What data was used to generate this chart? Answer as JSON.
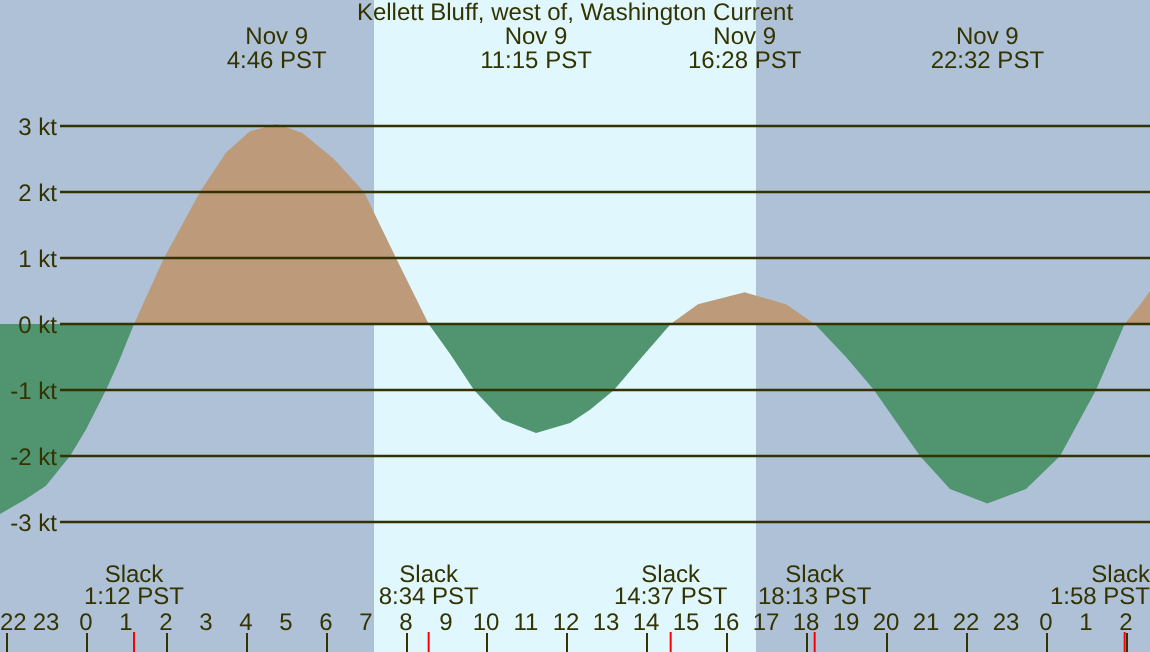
{
  "chart_data": {
    "type": "area",
    "title": "Kellett Bluff, west of, Washington Current",
    "x": [
      "--11-08T21:51",
      "--11-08T22:30",
      "--11-08T23:00",
      "--11-08T23:36",
      "--11-09T00:00",
      "--11-09T00:30",
      "--11-09T00:48",
      "--11-09T01:12",
      "--11-09T01:57",
      "--11-09T02:51",
      "--11-09T03:30",
      "--11-09T04:06",
      "--11-09T04:46",
      "--11-09T05:24",
      "--11-09T06:12",
      "--11-09T06:57",
      "--11-09T07:45",
      "--11-09T08:34",
      "--11-09T09:06",
      "--11-09T09:42",
      "--11-09T10:24",
      "--11-09T11:15",
      "--11-09T12:06",
      "--11-09T12:36",
      "--11-09T13:12",
      "--11-09T13:54",
      "--11-09T14:37",
      "--11-09T15:18",
      "--11-09T16:28",
      "--11-09T17:30",
      "--11-09T18:13",
      "--11-09T19:00",
      "--11-09T19:42",
      "--11-09T20:51",
      "--11-09T21:36",
      "--11-09T22:32",
      "--11-09T23:30",
      "--11-10T00:21",
      "--11-10T01:15",
      "--11-10T01:58",
      "--11-10T02:18",
      "--11-10T02:36"
    ],
    "series": [
      {
        "color": "#bc9a7a",
        "values": [
          null,
          null,
          null,
          null,
          null,
          null,
          null,
          0,
          1,
          2,
          2.6,
          2.92,
          3.03,
          2.9,
          2.5,
          2,
          1,
          0,
          null,
          null,
          null,
          null,
          null,
          null,
          null,
          null,
          0,
          0.3,
          0.48,
          0.3,
          0,
          null,
          null,
          null,
          null,
          null,
          null,
          null,
          null,
          0,
          0.25,
          0.5
        ]
      },
      {
        "color": "#509470",
        "values": [
          -2.88,
          -2.65,
          -2.45,
          -2,
          -1.6,
          -1,
          -0.6,
          0,
          null,
          null,
          null,
          null,
          null,
          null,
          null,
          null,
          null,
          0,
          -0.45,
          -1,
          -1.45,
          -1.65,
          -1.5,
          -1.3,
          -1,
          -0.5,
          0,
          null,
          null,
          null,
          0,
          -0.5,
          -1,
          -2,
          -2.5,
          -2.72,
          -2.5,
          -2,
          -1,
          0,
          null,
          null
        ]
      }
    ],
    "xlim": [
      "--11-08T21:51",
      "--11-10T02:36"
    ],
    "xticks": [
      {
        "value": "--11-08T22:00",
        "label": "22"
      },
      {
        "value": "--11-08T23:00",
        "label": "23"
      },
      {
        "value": "--11-09T00:00",
        "label": "0"
      },
      {
        "value": "--11-09T01:00",
        "label": "1"
      },
      {
        "value": "--11-09T02:00",
        "label": "2"
      },
      {
        "value": "--11-09T03:00",
        "label": "3"
      },
      {
        "value": "--11-09T04:00",
        "label": "4"
      },
      {
        "value": "--11-09T05:00",
        "label": "5"
      },
      {
        "value": "--11-09T06:00",
        "label": "6"
      },
      {
        "value": "--11-09T07:00",
        "label": "7"
      },
      {
        "value": "--11-09T08:00",
        "label": "8"
      },
      {
        "value": "--11-09T09:00",
        "label": "9"
      },
      {
        "value": "--11-09T10:00",
        "label": "10"
      },
      {
        "value": "--11-09T11:00",
        "label": "11"
      },
      {
        "value": "--11-09T12:00",
        "label": "12"
      },
      {
        "value": "--11-09T13:00",
        "label": "13"
      },
      {
        "value": "--11-09T14:00",
        "label": "14"
      },
      {
        "value": "--11-09T15:00",
        "label": "15"
      },
      {
        "value": "--11-09T16:00",
        "label": "16"
      },
      {
        "value": "--11-09T17:00",
        "label": "17"
      },
      {
        "value": "--11-09T18:00",
        "label": "18"
      },
      {
        "value": "--11-09T19:00",
        "label": "19"
      },
      {
        "value": "--11-09T20:00",
        "label": "20"
      },
      {
        "value": "--11-09T21:00",
        "label": "21"
      },
      {
        "value": "--11-09T22:00",
        "label": "22"
      },
      {
        "value": "--11-09T23:00",
        "label": "23"
      },
      {
        "value": "--11-10T00:00",
        "label": "0"
      },
      {
        "value": "--11-10T01:00",
        "label": "1"
      },
      {
        "value": "--11-10T02:00",
        "label": "2"
      }
    ],
    "ylim": [
      -4.97,
      4.91
    ],
    "yticks": [
      {
        "value": -3,
        "label": "-3 kt"
      },
      {
        "value": -2,
        "label": "-2 kt"
      },
      {
        "value": -1,
        "label": "-1 kt"
      },
      {
        "value": 0,
        "label": "0 kt"
      },
      {
        "value": 1,
        "label": "1 kt"
      },
      {
        "value": 2,
        "label": "2 kt"
      },
      {
        "value": 3,
        "label": "3 kt"
      }
    ],
    "grid": "y",
    "bands": [
      {
        "axis": "x",
        "from": "--11-08T21:51",
        "to": "--11-09T07:12",
        "color": "#afc1d6"
      },
      {
        "axis": "x",
        "from": "--11-09T07:12",
        "to": "--11-09T16:45",
        "color": "#dff7fd"
      },
      {
        "axis": "x",
        "from": "--11-09T16:45",
        "to": "--11-10T02:36",
        "color": "#afc1d6"
      }
    ],
    "annotations": [
      "Nov 9\n4:46 PST",
      "Nov 9\n11:15 PST",
      "Nov 9\n16:28 PST",
      "Nov 9\n22:32 PST",
      "Slack\n1:12 PST",
      "Slack\n8:34 PST",
      "Slack\n14:37 PST",
      "Slack\n18:13 PST",
      "Slack\n1:58 PST"
    ]
  }
}
